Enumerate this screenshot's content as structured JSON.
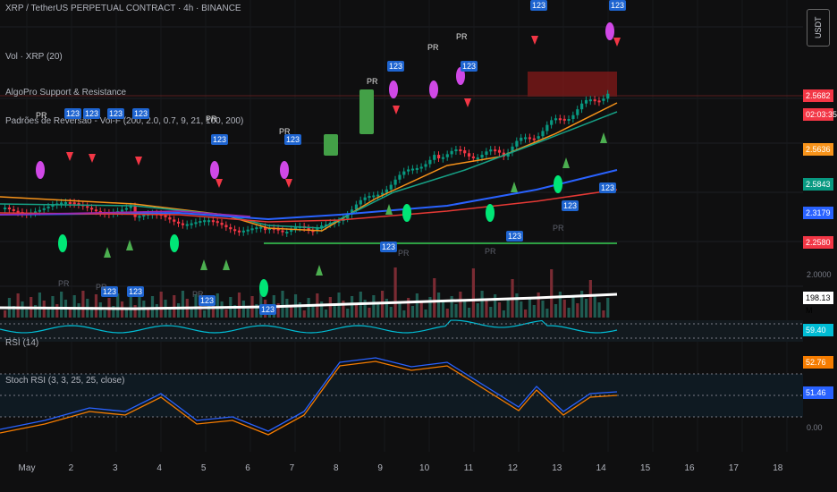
{
  "header": {
    "title": "XRP / TetherUS PERPETUAL CONTRACT · 4h · BINANCE",
    "currency": "USDT"
  },
  "indicators": {
    "vol": "Vol · XRP (20)",
    "algo": "AlgoPro Support & Resistance",
    "padroes": "Padrões de Reversão - Vol-F (200, 2.0, 0.7, 9, 21, 100, 200)",
    "rsi": "RSI (14)",
    "stoch": "Stoch RSI (3, 3, 25, 25, close)"
  },
  "price_labels": [
    {
      "value": "2.5682",
      "bg": "#f23645"
    },
    {
      "value": "02:03:35",
      "bg": "#f23645"
    },
    {
      "value": "2.5636",
      "bg": "#f7931a"
    },
    {
      "value": "2.5843",
      "bg": "#089981"
    },
    {
      "value": "2.3179",
      "bg": "#2962ff"
    },
    {
      "value": "2.2580",
      "bg": "#f23645"
    },
    {
      "value": "198.13 M",
      "bg": "#ffffff",
      "fg": "#000000"
    },
    {
      "value": "59.40",
      "bg": "#00bcd4"
    },
    {
      "value": "52.76",
      "bg": "#f57c00"
    },
    {
      "value": "51.46",
      "bg": "#2962ff"
    }
  ],
  "axis_ticks": [
    "2.0000",
    "0.00"
  ],
  "dates": [
    "May",
    "2",
    "3",
    "4",
    "5",
    "6",
    "7",
    "8",
    "9",
    "10",
    "11",
    "12",
    "13",
    "14",
    "15",
    "16",
    "17",
    "18"
  ],
  "signal_tag": "123",
  "pr_label": "PR",
  "colors": {
    "up": "#089981",
    "down": "#f23645",
    "ema_orange": "#f7931a",
    "ema_green": "#16a085",
    "ema_blue": "#2962ff",
    "ema_red": "#e53935",
    "ema_purple": "#9c27b0",
    "support": "#2e7d32",
    "resistance": "#8b1a1a"
  }
}
